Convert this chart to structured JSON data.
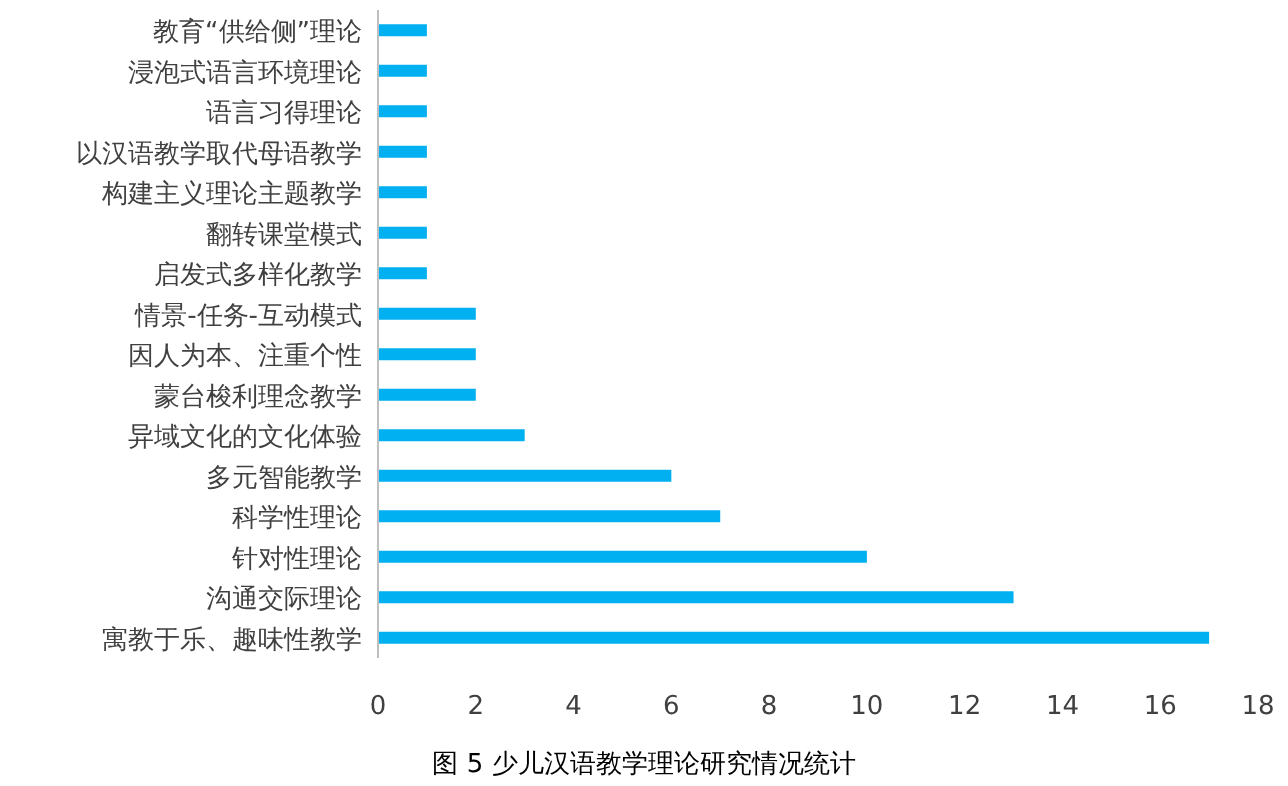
{
  "chart_data": {
    "type": "bar",
    "orientation": "horizontal",
    "categories": [
      "教育“供给侧”理论",
      "浸泡式语言环境理论",
      "语言习得理论",
      "以汉语教学取代母语教学",
      "构建主义理论主题教学",
      "翻转课堂模式",
      "启发式多样化教学",
      "情景-任务-互动模式",
      "因人为本、注重个性",
      "蒙台梭利理念教学",
      "异域文化的文化体验",
      "多元智能教学",
      "科学性理论",
      "针对性理论",
      "沟通交际理论",
      "寓教于乐、趣味性教学"
    ],
    "values": [
      1,
      1,
      1,
      1,
      1,
      1,
      1,
      2,
      2,
      2,
      3,
      6,
      7,
      10,
      13,
      17
    ],
    "color": "#00b0f0",
    "xlim": [
      0,
      18
    ],
    "xticks": [
      0,
      2,
      4,
      6,
      8,
      10,
      12,
      14,
      16,
      18
    ],
    "annotations": [
      "图 5 少儿汉语教学理论研究情况统计"
    ]
  }
}
